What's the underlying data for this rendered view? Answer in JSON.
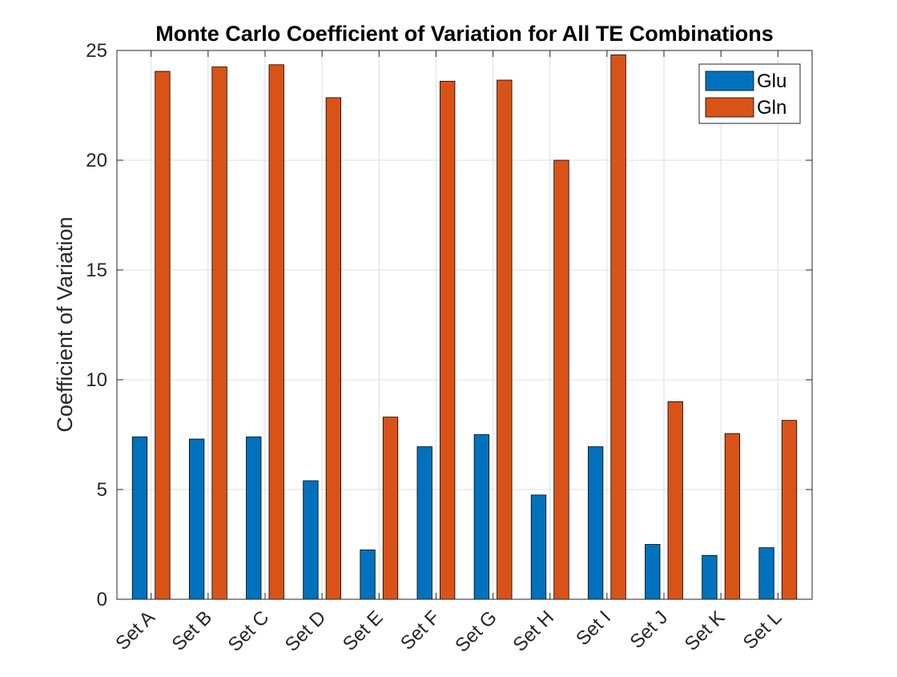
{
  "chart_data": {
    "type": "bar",
    "title": "Monte Carlo Coefficient of Variation for All TE Combinations",
    "xlabel": "",
    "ylabel": "Coefficient of Variation",
    "ylim": [
      0,
      25
    ],
    "yticks": [
      0,
      5,
      10,
      15,
      20,
      25
    ],
    "grid": true,
    "legend_position": "top-right",
    "categories": [
      "Set A",
      "Set B",
      "Set C",
      "Set D",
      "Set E",
      "Set F",
      "Set G",
      "Set H",
      "Set I",
      "Set J",
      "Set K",
      "Set L"
    ],
    "series": [
      {
        "name": "Glu",
        "color": "#0072BD",
        "values": [
          7.4,
          7.3,
          7.4,
          5.4,
          2.25,
          6.95,
          7.5,
          4.75,
          6.95,
          2.5,
          2.0,
          2.35
        ]
      },
      {
        "name": "Gln",
        "color": "#D95319",
        "values": [
          24.05,
          24.25,
          24.35,
          22.85,
          8.3,
          23.6,
          23.65,
          20.0,
          24.8,
          9.0,
          7.55,
          8.15
        ]
      }
    ]
  }
}
